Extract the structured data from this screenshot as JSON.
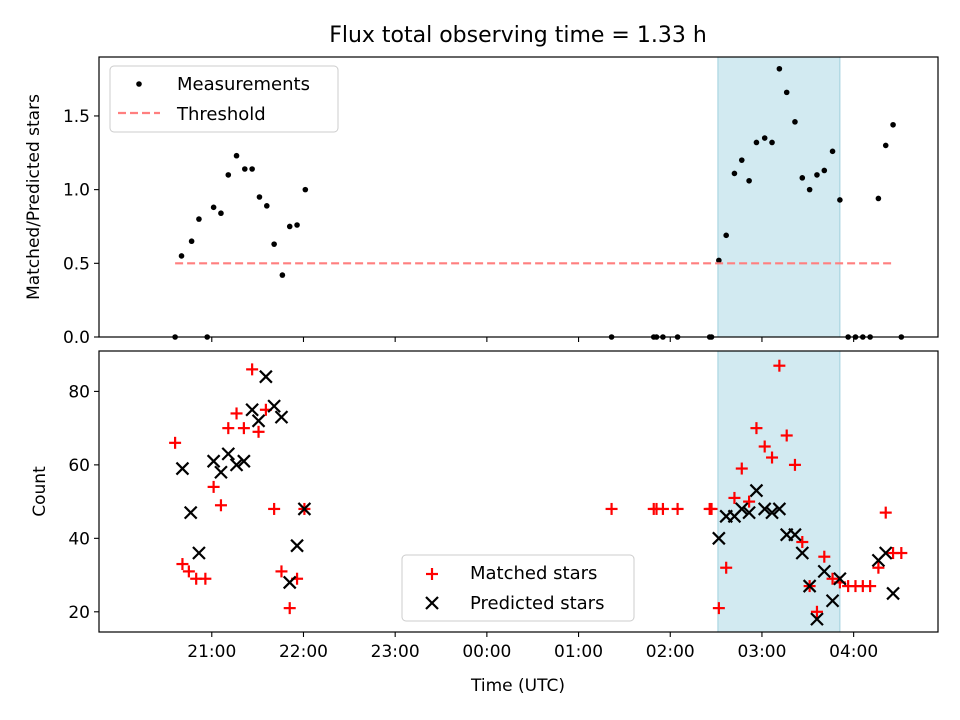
{
  "figure": {
    "title": "Flux total observing time = 1.33 h",
    "xlabel": "Time (UTC)",
    "x_ticks": [
      {
        "label": "21:00",
        "t": 21.0
      },
      {
        "label": "22:00",
        "t": 22.0
      },
      {
        "label": "23:00",
        "t": 23.0
      },
      {
        "label": "00:00",
        "t": 24.0
      },
      {
        "label": "01:00",
        "t": 25.0
      },
      {
        "label": "02:00",
        "t": 26.0
      },
      {
        "label": "03:00",
        "t": 27.0
      },
      {
        "label": "04:00",
        "t": 28.0
      }
    ],
    "xlim": [
      19.77,
      28.92
    ],
    "highlight_span": [
      26.52,
      27.85
    ],
    "highlight_color": "#add8e6"
  },
  "chart_data": [
    {
      "type": "scatter",
      "ylabel": "Matched/Predicted stars",
      "ylim": [
        0,
        1.9
      ],
      "y_ticks": [
        0.0,
        0.5,
        1.0,
        1.5
      ],
      "y_tick_labels": [
        "0.0",
        "0.5",
        "1.0",
        "1.5"
      ],
      "legend_position": "top-left",
      "series": [
        {
          "name": "Measurements",
          "marker": "dot",
          "color": "#000000",
          "points": [
            [
              20.6,
              0.0
            ],
            [
              20.67,
              0.55
            ],
            [
              20.78,
              0.65
            ],
            [
              20.86,
              0.8
            ],
            [
              20.95,
              0.0
            ],
            [
              21.02,
              0.88
            ],
            [
              21.1,
              0.84
            ],
            [
              21.18,
              1.1
            ],
            [
              21.27,
              1.23
            ],
            [
              21.36,
              1.14
            ],
            [
              21.44,
              1.14
            ],
            [
              21.52,
              0.95
            ],
            [
              21.6,
              0.89
            ],
            [
              21.68,
              0.63
            ],
            [
              21.77,
              0.42
            ],
            [
              21.85,
              0.75
            ],
            [
              21.93,
              0.76
            ],
            [
              22.02,
              1.0
            ],
            [
              25.36,
              0.0
            ],
            [
              25.82,
              0.0
            ],
            [
              25.85,
              0.0
            ],
            [
              25.92,
              0.0
            ],
            [
              26.08,
              0.0
            ],
            [
              26.43,
              0.0
            ],
            [
              26.45,
              0.0
            ],
            [
              26.53,
              0.52
            ],
            [
              26.61,
              0.69
            ],
            [
              26.7,
              1.11
            ],
            [
              26.78,
              1.2
            ],
            [
              26.86,
              1.06
            ],
            [
              26.94,
              1.32
            ],
            [
              27.03,
              1.35
            ],
            [
              27.11,
              1.32
            ],
            [
              27.19,
              1.82
            ],
            [
              27.27,
              1.66
            ],
            [
              27.36,
              1.46
            ],
            [
              27.44,
              1.08
            ],
            [
              27.52,
              1.0
            ],
            [
              27.6,
              1.1
            ],
            [
              27.68,
              1.13
            ],
            [
              27.77,
              1.26
            ],
            [
              27.85,
              0.93
            ],
            [
              27.94,
              0.0
            ],
            [
              28.02,
              0.0
            ],
            [
              28.1,
              0.0
            ],
            [
              28.18,
              0.0
            ],
            [
              28.27,
              0.94
            ],
            [
              28.35,
              1.3
            ],
            [
              28.43,
              1.44
            ],
            [
              28.52,
              0.0
            ]
          ]
        },
        {
          "name": "Threshold",
          "marker": "dashed-line",
          "color": "#ff7f7f",
          "x": [
            20.6,
            28.45
          ],
          "y": [
            0.5,
            0.5
          ]
        }
      ]
    },
    {
      "type": "scatter",
      "ylabel": "Count",
      "ylim": [
        14.5,
        91
      ],
      "y_ticks": [
        20,
        40,
        60,
        80
      ],
      "y_tick_labels": [
        "20",
        "40",
        "60",
        "80"
      ],
      "legend_position": "lower-center",
      "series": [
        {
          "name": "Matched stars",
          "marker": "plus",
          "color": "#ff0000",
          "points": [
            [
              20.6,
              66
            ],
            [
              20.68,
              33
            ],
            [
              20.75,
              31
            ],
            [
              20.83,
              29
            ],
            [
              20.93,
              29
            ],
            [
              21.02,
              54
            ],
            [
              21.1,
              49
            ],
            [
              21.18,
              70
            ],
            [
              21.27,
              74
            ],
            [
              21.35,
              70
            ],
            [
              21.44,
              86
            ],
            [
              21.51,
              69
            ],
            [
              21.59,
              75
            ],
            [
              21.68,
              48
            ],
            [
              21.76,
              31
            ],
            [
              21.85,
              21
            ],
            [
              21.93,
              29
            ],
            [
              22.01,
              48
            ],
            [
              25.36,
              48
            ],
            [
              25.82,
              48
            ],
            [
              25.85,
              48
            ],
            [
              25.92,
              48
            ],
            [
              26.08,
              48
            ],
            [
              26.43,
              48
            ],
            [
              26.45,
              48
            ],
            [
              26.53,
              21
            ],
            [
              26.61,
              32
            ],
            [
              26.7,
              51
            ],
            [
              26.78,
              59
            ],
            [
              26.86,
              50
            ],
            [
              26.94,
              70
            ],
            [
              27.03,
              65
            ],
            [
              27.11,
              62
            ],
            [
              27.19,
              87
            ],
            [
              27.27,
              68
            ],
            [
              27.36,
              60
            ],
            [
              27.44,
              39
            ],
            [
              27.52,
              27
            ],
            [
              27.6,
              20
            ],
            [
              27.68,
              35
            ],
            [
              27.77,
              29
            ],
            [
              27.85,
              28
            ],
            [
              27.94,
              27
            ],
            [
              28.02,
              27
            ],
            [
              28.1,
              27
            ],
            [
              28.18,
              27
            ],
            [
              28.27,
              32
            ],
            [
              28.35,
              47
            ],
            [
              28.43,
              36
            ],
            [
              28.52,
              36
            ]
          ]
        },
        {
          "name": "Predicted stars",
          "marker": "x",
          "color": "#000000",
          "points": [
            [
              20.68,
              59
            ],
            [
              20.77,
              47
            ],
            [
              20.86,
              36
            ],
            [
              21.02,
              61
            ],
            [
              21.1,
              58
            ],
            [
              21.18,
              63
            ],
            [
              21.27,
              60
            ],
            [
              21.35,
              61
            ],
            [
              21.44,
              75
            ],
            [
              21.51,
              72
            ],
            [
              21.59,
              84
            ],
            [
              21.68,
              76
            ],
            [
              21.76,
              73
            ],
            [
              21.85,
              28
            ],
            [
              21.93,
              38
            ],
            [
              22.01,
              48
            ],
            [
              26.53,
              40
            ],
            [
              26.61,
              46
            ],
            [
              26.7,
              46
            ],
            [
              26.78,
              48
            ],
            [
              26.86,
              47
            ],
            [
              26.94,
              53
            ],
            [
              27.03,
              48
            ],
            [
              27.11,
              47
            ],
            [
              27.19,
              48
            ],
            [
              27.27,
              41
            ],
            [
              27.36,
              41
            ],
            [
              27.44,
              36
            ],
            [
              27.52,
              27
            ],
            [
              27.6,
              18
            ],
            [
              27.68,
              31
            ],
            [
              27.77,
              23
            ],
            [
              27.85,
              29
            ],
            [
              28.27,
              34
            ],
            [
              28.35,
              36
            ],
            [
              28.43,
              25
            ]
          ]
        }
      ]
    }
  ]
}
